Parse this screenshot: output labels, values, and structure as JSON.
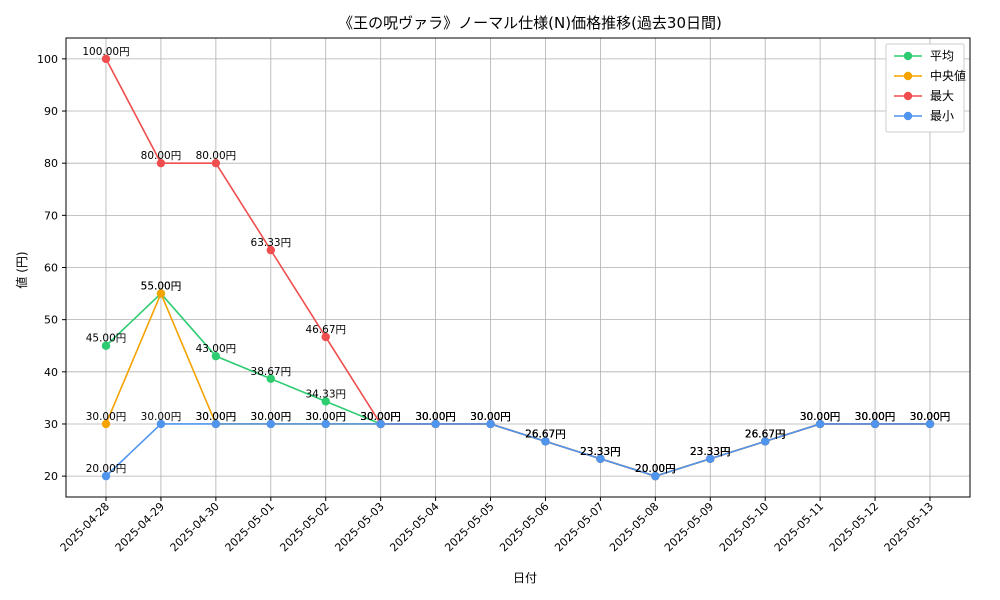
{
  "chart_data": {
    "type": "line",
    "title": "《王の呪ヴァラ》ノーマル仕様(N)価格推移(過去30日間)",
    "xlabel": "日付",
    "ylabel": "値 (円)",
    "categories": [
      "2025-04-28",
      "2025-04-29",
      "2025-04-30",
      "2025-05-01",
      "2025-05-02",
      "2025-05-03",
      "2025-05-04",
      "2025-05-05",
      "2025-05-06",
      "2025-05-07",
      "2025-05-08",
      "2025-05-09",
      "2025-05-10",
      "2025-05-11",
      "2025-05-12",
      "2025-05-13"
    ],
    "ylim": [
      16,
      104
    ],
    "yticks": [
      20,
      30,
      40,
      50,
      60,
      70,
      80,
      90,
      100
    ],
    "grid": true,
    "legend_position": "top-right",
    "series": [
      {
        "name": "平均",
        "color": "#2ecc71",
        "values": [
          45.0,
          55.0,
          43.0,
          38.67,
          34.33,
          30.0,
          30.0,
          30.0,
          26.67,
          23.33,
          20.0,
          23.33,
          26.67,
          30.0,
          30.0,
          30.0
        ]
      },
      {
        "name": "中央値",
        "color": "#f5a300",
        "values": [
          30.0,
          55.0,
          30.0,
          30.0,
          30.0,
          30.0,
          30.0,
          30.0,
          26.67,
          23.33,
          20.0,
          23.33,
          26.67,
          30.0,
          30.0,
          30.0
        ]
      },
      {
        "name": "最大",
        "color": "#f04e4e",
        "values": [
          100.0,
          80.0,
          80.0,
          63.33,
          46.67,
          30.0,
          30.0,
          30.0,
          26.67,
          23.33,
          20.0,
          23.33,
          26.67,
          30.0,
          30.0,
          30.0
        ]
      },
      {
        "name": "最小",
        "color": "#4f95ed",
        "values": [
          20.0,
          30.0,
          30.0,
          30.0,
          30.0,
          30.0,
          30.0,
          30.0,
          26.67,
          23.33,
          20.0,
          23.33,
          26.67,
          30.0,
          30.0,
          30.0
        ]
      }
    ],
    "value_suffix": "円"
  }
}
